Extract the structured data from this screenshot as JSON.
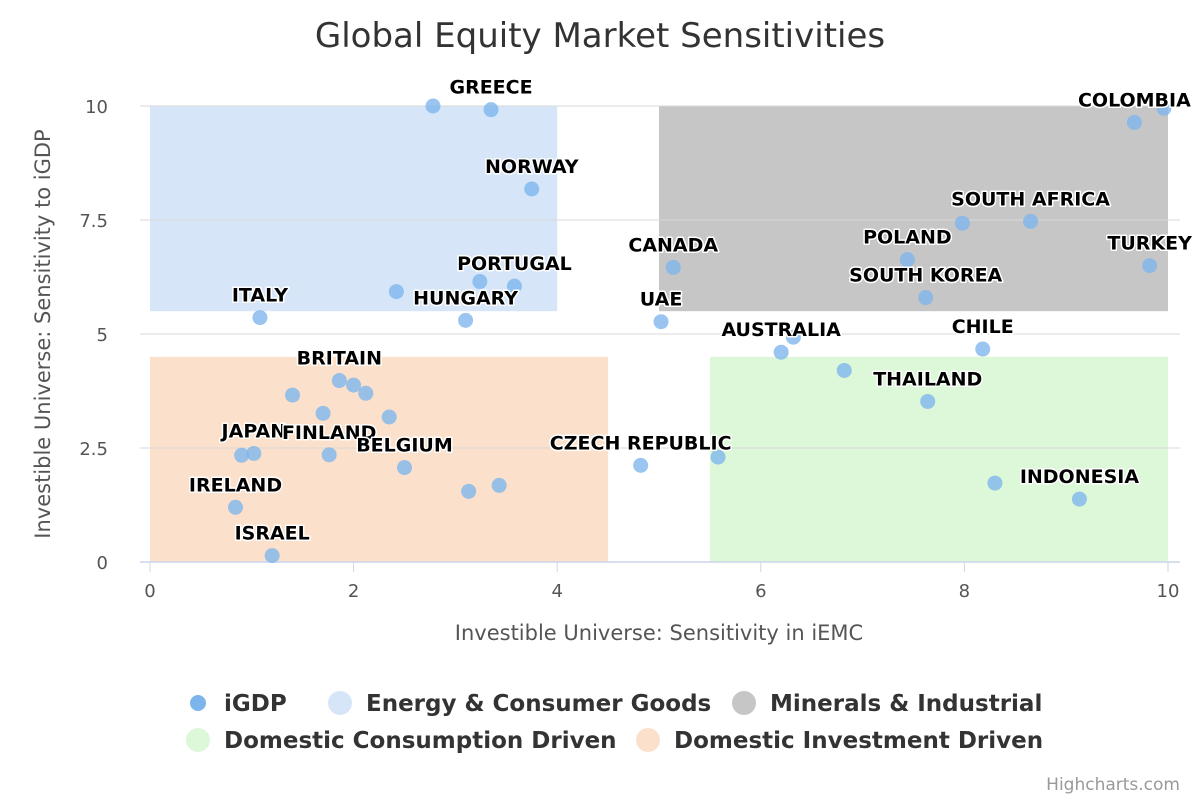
{
  "credit": "Highcharts.com",
  "chart_data": {
    "type": "scatter",
    "title": "Global Equity Market Sensitivities",
    "xlabel": "Investible Universe: Sensitivity in iEMC",
    "ylabel": "Investible Universe: Sensitivity to iGDP",
    "xlim": [
      0,
      10
    ],
    "ylim": [
      0,
      10
    ],
    "x_ticks": [
      "0",
      "2",
      "4",
      "6",
      "8",
      "10"
    ],
    "y_ticks": [
      "0",
      "2.5",
      "5",
      "7.5",
      "10"
    ],
    "grid": "horizontal",
    "legend_position": "bottom-center",
    "regions": [
      {
        "name": "Energy & Consumer Goods",
        "x": [
          0,
          4
        ],
        "y": [
          5.5,
          10
        ],
        "color": "#d6e6f8"
      },
      {
        "name": "Minerals & Industrial",
        "x": [
          5,
          10
        ],
        "y": [
          5.5,
          10
        ],
        "color": "#c6c6c6"
      },
      {
        "name": "Domestic Consumption Driven",
        "x": [
          5.5,
          10
        ],
        "y": [
          0,
          4.5
        ],
        "color": "#dcf8d8"
      },
      {
        "name": "Domestic Investment Driven",
        "x": [
          0,
          4.5
        ],
        "y": [
          0,
          4.5
        ],
        "color": "#fbe1cc"
      }
    ],
    "series": [
      {
        "name": "iGDP",
        "color": "#7cb5ec",
        "points": [
          {
            "x": 2.78,
            "y": 10.0,
            "label": ""
          },
          {
            "x": 3.35,
            "y": 9.92,
            "label": "GREECE"
          },
          {
            "x": 3.75,
            "y": 8.18,
            "label": "NORWAY"
          },
          {
            "x": 3.24,
            "y": 6.15,
            "label": ""
          },
          {
            "x": 3.58,
            "y": 6.05,
            "label": "PORTUGAL"
          },
          {
            "x": 2.42,
            "y": 5.93,
            "label": ""
          },
          {
            "x": 3.1,
            "y": 5.3,
            "label": "HUNGARY"
          },
          {
            "x": 1.08,
            "y": 5.36,
            "label": "ITALY"
          },
          {
            "x": 5.02,
            "y": 5.27,
            "label": "UAE"
          },
          {
            "x": 5.14,
            "y": 6.46,
            "label": "CANADA"
          },
          {
            "x": 6.32,
            "y": 4.93,
            "label": ""
          },
          {
            "x": 6.2,
            "y": 4.6,
            "label": "AUSTRALIA"
          },
          {
            "x": 8.18,
            "y": 4.67,
            "label": "CHILE"
          },
          {
            "x": 4.82,
            "y": 2.12,
            "label": "CZECH REPUBLIC"
          },
          {
            "x": 7.44,
            "y": 6.63,
            "label": "POLAND"
          },
          {
            "x": 7.98,
            "y": 7.43,
            "label": ""
          },
          {
            "x": 8.65,
            "y": 7.47,
            "label": "SOUTH AFRICA"
          },
          {
            "x": 7.62,
            "y": 5.8,
            "label": "SOUTH KOREA"
          },
          {
            "x": 9.67,
            "y": 9.64,
            "label": "COLOMBIA"
          },
          {
            "x": 9.96,
            "y": 9.95,
            "label": ""
          },
          {
            "x": 9.82,
            "y": 6.5,
            "label": "TURKEY"
          },
          {
            "x": 6.82,
            "y": 4.2,
            "label": ""
          },
          {
            "x": 7.64,
            "y": 3.52,
            "label": "THAILAND"
          },
          {
            "x": 5.58,
            "y": 2.3,
            "label": ""
          },
          {
            "x": 8.3,
            "y": 1.73,
            "label": ""
          },
          {
            "x": 9.13,
            "y": 1.38,
            "label": "INDONESIA"
          },
          {
            "x": 1.4,
            "y": 3.66,
            "label": ""
          },
          {
            "x": 1.86,
            "y": 3.98,
            "label": "BRITAIN"
          },
          {
            "x": 2.0,
            "y": 3.88,
            "label": ""
          },
          {
            "x": 2.12,
            "y": 3.7,
            "label": ""
          },
          {
            "x": 2.35,
            "y": 3.18,
            "label": ""
          },
          {
            "x": 1.7,
            "y": 3.26,
            "label": ""
          },
          {
            "x": 0.9,
            "y": 2.34,
            "label": ""
          },
          {
            "x": 1.02,
            "y": 2.38,
            "label": "JAPAN"
          },
          {
            "x": 1.76,
            "y": 2.35,
            "label": "FINLAND"
          },
          {
            "x": 2.5,
            "y": 2.07,
            "label": "BELGIUM"
          },
          {
            "x": 3.13,
            "y": 1.55,
            "label": ""
          },
          {
            "x": 3.43,
            "y": 1.68,
            "label": ""
          },
          {
            "x": 0.84,
            "y": 1.2,
            "label": "IRELAND"
          },
          {
            "x": 1.2,
            "y": 0.14,
            "label": "ISRAEL"
          }
        ]
      }
    ]
  }
}
